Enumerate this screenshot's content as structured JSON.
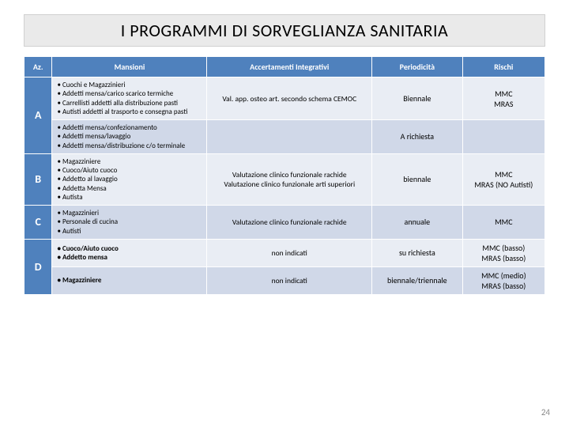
{
  "title": "I PROGRAMMI DI SORVEGLIANZA SANITARIA",
  "columns": {
    "az": "Az.",
    "mansioni": "Mansioni",
    "accertamenti": "Accertamenti  Integrativi",
    "periodicita": "Periodicità",
    "rischi": "Rischi"
  },
  "rows": [
    {
      "az": "A",
      "az_rowspan": 2,
      "mansioni": "Cuochi e Magazzinieri|Addetti mensa/carico scarico termiche|Carrellisti addetti alla distribuzione pasti|Autisti addetti al trasporto e consegna pasti",
      "accert": "Val. app. osteo  art. secondo schema CEMOC",
      "period": "Biennale",
      "rischi": "MMC\nMRAS",
      "alt": false
    },
    {
      "mansioni": "Addetti mensa/confezionamento|Addetti mensa/lavaggio|Addetti mensa/distribuzione c/o terminale",
      "accert": "",
      "period": "A richiesta",
      "rischi": "",
      "alt": true
    },
    {
      "az": "B",
      "mansioni": "Magazziniere|Cuoco/Aiuto cuoco|Addetto al lavaggio|Addetta Mensa|Autista",
      "accert": "Valutazione clinico funzionale  rachide\nValutazione clinico funzionale  arti superiori",
      "period": "biennale",
      "rischi": "MMC\nMRAS (NO Autisti)",
      "alt": false
    },
    {
      "az": "C",
      "mansioni": "Magazzinieri|Personale di cucina|Autisti",
      "accert": "Valutazione clinico funzionale rachide",
      "period": "annuale",
      "rischi": "MMC",
      "alt": true
    },
    {
      "az": "D",
      "az_rowspan": 2,
      "mansioni_bold": true,
      "mansioni": "Cuoco/Aiuto cuoco|Addetto mensa",
      "accert": "non indicati",
      "period": "su richiesta",
      "rischi": "MMC  (basso)\nMRAS (basso)",
      "alt": false
    },
    {
      "mansioni_bold": true,
      "mansioni": "Magazziniere",
      "accert": "non indicati",
      "period": "biennale/triennale",
      "rischi": "MMC (medio)\nMRAS (basso)",
      "alt": true
    }
  ],
  "page_number": "24"
}
